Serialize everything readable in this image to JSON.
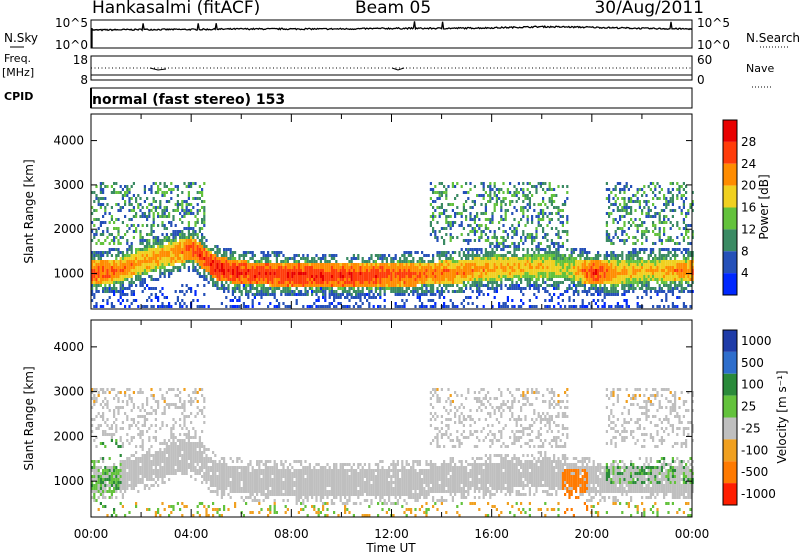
{
  "header": {
    "station": "Hankasalmi (fitACF)",
    "beam": "Beam 05",
    "date": "30/Aug/2011"
  },
  "mode_label": "normal (fast stereo) 153",
  "chart_data": [
    {
      "type": "line",
      "title": "",
      "ylabel_left": "N.Sky",
      "ylabel_right": "N.Search",
      "y_ticks_left": [
        "10^5",
        "10^0"
      ],
      "y_ticks_right": [
        "10^5",
        "10^0"
      ],
      "x": [
        0,
        2,
        4,
        6,
        8,
        10,
        12,
        14,
        16,
        18,
        20,
        22,
        24
      ],
      "values": [
        3.2,
        3.3,
        3.3,
        3.4,
        3.4,
        3.4,
        3.5,
        3.5,
        3.6,
        3.8,
        3.7,
        3.5,
        3.4
      ],
      "xlim": [
        0,
        24
      ]
    },
    {
      "type": "line",
      "title": "",
      "ylabel_left": "Freq. [MHz]",
      "ylabel_right": "Nave",
      "sublabel": "CPID",
      "y_ticks_left": [
        "18",
        "8"
      ],
      "y_ticks_right": [
        "60",
        "0"
      ],
      "series": [
        {
          "name": "Nave",
          "values": [
            30,
            30,
            30,
            30,
            30,
            30,
            30,
            30,
            30,
            30,
            30,
            30,
            30
          ]
        }
      ],
      "x": [
        0,
        2,
        4,
        6,
        8,
        10,
        12,
        14,
        16,
        18,
        20,
        22,
        24
      ],
      "xlim": [
        0,
        24
      ]
    },
    {
      "type": "heatmap",
      "title": "",
      "ylabel": "Slant Range [km]",
      "y_ticks": [
        "1000",
        "2000",
        "3000",
        "4000"
      ],
      "ylim": [
        200,
        4600
      ],
      "colorbar_label": "Power [dB]",
      "colorbar_ticks": [
        "4",
        "8",
        "12",
        "16",
        "20",
        "24",
        "28"
      ],
      "colorbar_colors": [
        "#0028ff",
        "#2550b8",
        "#3a8a63",
        "#63c23c",
        "#f0d020",
        "#ff8c00",
        "#ff3c0a",
        "#e80000"
      ],
      "echo_band": {
        "x_hours": [
          0,
          1,
          2,
          3,
          4,
          5,
          6,
          8,
          10,
          12,
          14,
          16,
          18,
          19,
          20,
          21,
          22,
          23,
          24
        ],
        "center_km": [
          1050,
          1100,
          1300,
          1450,
          1600,
          1150,
          1050,
          1000,
          980,
          1000,
          1050,
          1150,
          1200,
          1150,
          1050,
          1050,
          1100,
          1100,
          1100
        ],
        "peak_db": [
          27,
          24,
          22,
          22,
          26,
          29,
          28,
          28,
          28,
          27,
          24,
          22,
          20,
          18,
          28,
          22,
          20,
          22,
          24
        ]
      }
    },
    {
      "type": "heatmap",
      "title": "",
      "ylabel": "Slant Range [km]",
      "y_ticks": [
        "1000",
        "2000",
        "3000",
        "4000"
      ],
      "ylim": [
        200,
        4600
      ],
      "colorbar_label": "Velocity [m s⁻¹]",
      "colorbar_ticks": [
        "1000",
        "500",
        "100",
        "25",
        "-25",
        "-100",
        "-500",
        "-1000"
      ],
      "colorbar_colors": [
        "#1f3ca8",
        "#2e6ecc",
        "#2a8a3a",
        "#63c23c",
        "#bfbfbf",
        "#f0a020",
        "#ff7a00",
        "#ff1e00"
      ],
      "xlabel": "Time UT",
      "x_ticks": [
        "00:00",
        "04:00",
        "08:00",
        "12:00",
        "16:00",
        "20:00",
        "00:00"
      ],
      "xlim": [
        0,
        24
      ]
    }
  ]
}
